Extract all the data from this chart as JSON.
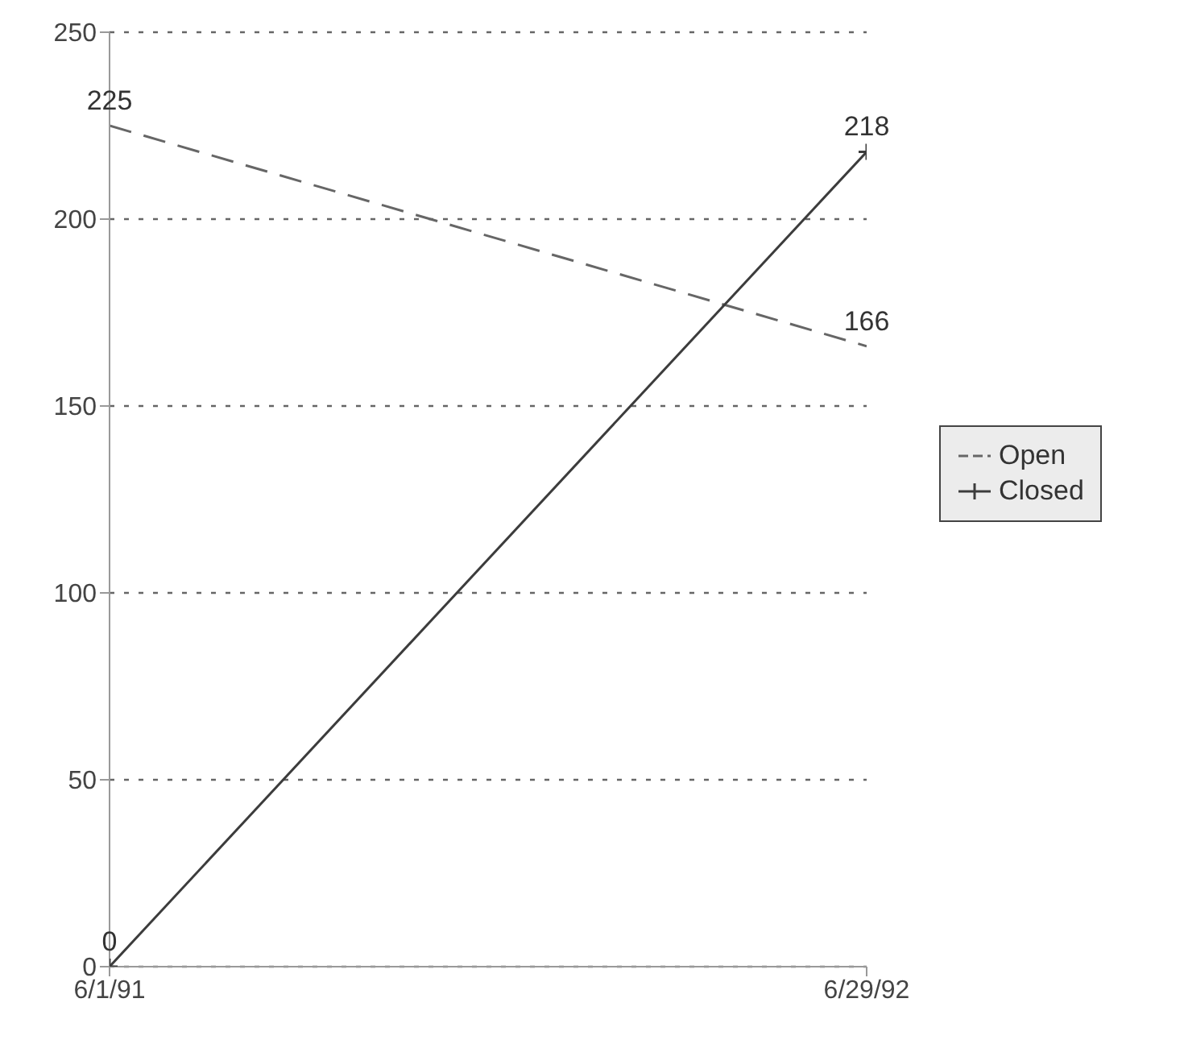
{
  "chart_data": {
    "type": "line",
    "x": [
      "1991-06-01",
      "1992-06-29"
    ],
    "series": [
      {
        "name": "Open",
        "color": "#666666",
        "values": [
          225,
          166
        ],
        "line_style": "dashed",
        "marker": "none"
      },
      {
        "name": "Closed",
        "color": "#3c3c3c",
        "values": [
          0,
          218
        ],
        "line_style": "solid",
        "marker": "cross"
      }
    ],
    "xlim": [
      "1991-06-01",
      "1992-06-29"
    ],
    "xticks": [
      {
        "value": "1991-06-01",
        "label": "6/1/91"
      },
      {
        "value": "1992-06-29",
        "label": "6/29/92"
      }
    ],
    "ylim": [
      0,
      250
    ],
    "yticks": [
      0,
      50,
      100,
      150,
      200,
      250
    ],
    "grid": "y",
    "legend": "right",
    "data_labels": true
  }
}
